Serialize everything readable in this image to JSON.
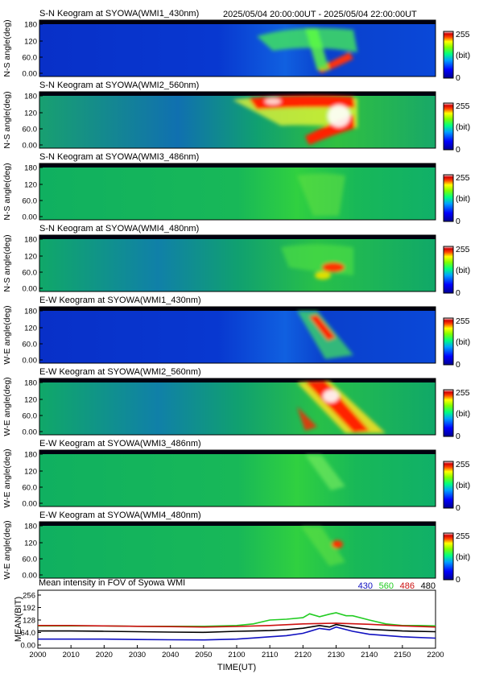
{
  "header": {
    "time_range": "2025/05/04 20:00:00UT - 2025/05/04 22:00:00UT"
  },
  "colors": {
    "series_430": "#1010c0",
    "series_560": "#22cc22",
    "series_486": "#cc1010",
    "series_480": "#000000"
  },
  "keograms": [
    {
      "title": "S-N Keogram at SYOWA(WMI1_430nm)",
      "ylabel": "N-S angle(deg)",
      "yticks": [
        "180",
        "120",
        "60.0",
        "0.00"
      ],
      "cbar_top": "255",
      "cbar_mid": "(bit)",
      "cbar_bot": "0"
    },
    {
      "title": "S-N Keogram at SYOWA(WMI2_560nm)",
      "ylabel": "N-S angle(deg)",
      "yticks": [
        "180",
        "120",
        "60.0",
        "0.00"
      ],
      "cbar_top": "255",
      "cbar_mid": "(bit)",
      "cbar_bot": "0"
    },
    {
      "title": "S-N Keogram at SYOWA(WMI3_486nm)",
      "ylabel": "N-S angle(deg)",
      "yticks": [
        "180",
        "120",
        "60.0",
        "0.00"
      ],
      "cbar_top": "255",
      "cbar_mid": "(bit)",
      "cbar_bot": "0"
    },
    {
      "title": "S-N Keogram at SYOWA(WMI4_480nm)",
      "ylabel": "N-S angle(deg)",
      "yticks": [
        "180",
        "120",
        "60.0",
        "0.00"
      ],
      "cbar_top": "255",
      "cbar_mid": "(bit)",
      "cbar_bot": "0"
    },
    {
      "title": "E-W Keogram at SYOWA(WMI1_430nm)",
      "ylabel": "W-E angle(deg)",
      "yticks": [
        "180",
        "120",
        "60.0",
        "0.00"
      ],
      "cbar_top": "255",
      "cbar_mid": "(bit)",
      "cbar_bot": "0"
    },
    {
      "title": "E-W Keogram at SYOWA(WMI2_560nm)",
      "ylabel": "W-E angle(deg)",
      "yticks": [
        "180",
        "120",
        "60.0",
        "0.00"
      ],
      "cbar_top": "255",
      "cbar_mid": "(bit)",
      "cbar_bot": "0"
    },
    {
      "title": "E-W Keogram at SYOWA(WMI3_486nm)",
      "ylabel": "W-E angle(deg)",
      "yticks": [
        "180",
        "120",
        "60.0",
        "0.00"
      ],
      "cbar_top": "255",
      "cbar_mid": "(bit)",
      "cbar_bot": "0"
    },
    {
      "title": "E-W Keogram at SYOWA(WMI4_480nm)",
      "ylabel": "W-E angle(deg)",
      "yticks": [
        "180",
        "120",
        "60.0",
        "0.00"
      ],
      "cbar_top": "255",
      "cbar_mid": "(bit)",
      "cbar_bot": "0"
    }
  ],
  "chart_data": {
    "type": "line",
    "title": "Mean intensity in FOV of Syowa WMI",
    "xlabel": "TIME(UT)",
    "ylabel": "MEAN(BIT)",
    "xlim": [
      0,
      120
    ],
    "ylim": [
      0,
      256
    ],
    "ytick_labels": [
      "256",
      "192",
      "128",
      "64.0",
      "0.00"
    ],
    "yticks": [
      256,
      192,
      128,
      64,
      0
    ],
    "xtick_labels": [
      "2000",
      "2010",
      "2020",
      "2030",
      "2040",
      "2050",
      "2100",
      "2110",
      "2120",
      "2130",
      "2140",
      "2150",
      "2200"
    ],
    "xticks": [
      0,
      10,
      20,
      30,
      40,
      50,
      60,
      70,
      80,
      90,
      100,
      110,
      120
    ],
    "legend_position": "top-right",
    "series": [
      {
        "name": "430",
        "color": "#1010c0",
        "x": [
          0,
          10,
          20,
          30,
          40,
          50,
          60,
          65,
          70,
          75,
          80,
          85,
          88,
          90,
          95,
          100,
          110,
          120
        ],
        "y": [
          30,
          30,
          30,
          28,
          27,
          26,
          30,
          36,
          42,
          48,
          60,
          85,
          78,
          92,
          70,
          55,
          42,
          35
        ]
      },
      {
        "name": "560",
        "color": "#22cc22",
        "x": [
          0,
          10,
          20,
          30,
          40,
          50,
          60,
          65,
          70,
          75,
          80,
          82,
          85,
          88,
          90,
          93,
          95,
          100,
          105,
          110,
          115,
          120
        ],
        "y": [
          98,
          98,
          98,
          96,
          96,
          96,
          100,
          108,
          128,
          132,
          140,
          160,
          145,
          158,
          165,
          150,
          150,
          128,
          108,
          100,
          100,
          98
        ]
      },
      {
        "name": "486",
        "color": "#cc1010",
        "x": [
          0,
          10,
          20,
          30,
          40,
          50,
          60,
          70,
          80,
          90,
          100,
          110,
          120
        ],
        "y": [
          100,
          100,
          98,
          96,
          94,
          92,
          95,
          100,
          108,
          112,
          106,
          98,
          92
        ]
      },
      {
        "name": "480",
        "color": "#000000",
        "x": [
          0,
          10,
          20,
          30,
          40,
          50,
          60,
          65,
          70,
          75,
          80,
          85,
          88,
          90,
          95,
          100,
          110,
          120
        ],
        "y": [
          72,
          72,
          70,
          68,
          66,
          65,
          70,
          72,
          74,
          78,
          86,
          100,
          92,
          105,
          90,
          80,
          72,
          68
        ]
      }
    ]
  }
}
